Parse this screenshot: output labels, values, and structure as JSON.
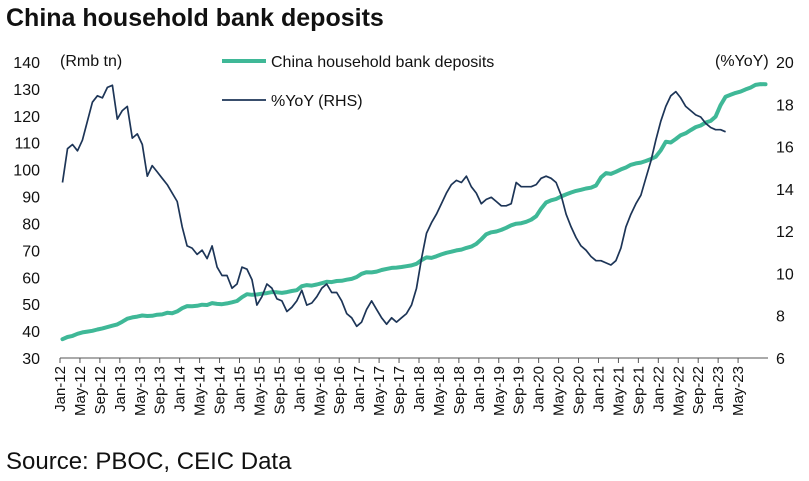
{
  "title": "China household bank deposits",
  "source": "Source: PBOC, CEIC Data",
  "colors": {
    "deposits": "#3fb897",
    "yoy": "#1d3557",
    "text": "#111111"
  },
  "chart_data": {
    "type": "line",
    "title": "China household bank deposits",
    "left_axis_label": "(Rmb tn)",
    "right_axis_label": "(%YoY)",
    "y_left": {
      "min": 30,
      "max": 140,
      "ticks": [
        30,
        40,
        50,
        60,
        70,
        80,
        90,
        100,
        110,
        120,
        130,
        140
      ]
    },
    "y_right": {
      "min": 6,
      "max": 20,
      "ticks": [
        6,
        8,
        10,
        12,
        14,
        16,
        18,
        20
      ]
    },
    "x_ticks": [
      "Jan-12",
      "May-12",
      "Sep-12",
      "Jan-13",
      "May-13",
      "Sep-13",
      "Jan-14",
      "May-14",
      "Sep-14",
      "Jan-15",
      "May-15",
      "Sep-15",
      "Jan-16",
      "May-16",
      "Sep-16",
      "Jan-17",
      "May-17",
      "Sep-17",
      "Jan-18",
      "May-18",
      "Sep-18",
      "Jan-19",
      "May-19",
      "Sep-19",
      "Jan-20",
      "May-20",
      "Sep-20",
      "Jan-21",
      "May-21",
      "Sep-21",
      "Jan-22",
      "May-22",
      "Sep-22",
      "Jan-23",
      "May-23"
    ],
    "grid": false,
    "legend": "top-center",
    "series": [
      {
        "name": "China household bank deposits",
        "axis": "left",
        "values": [
          37,
          37.8,
          38.2,
          39,
          39.5,
          39.8,
          40.1,
          40.6,
          41,
          41.5,
          42,
          42.5,
          43.5,
          44.6,
          45.1,
          45.4,
          45.8,
          45.6,
          45.7,
          46.1,
          46.2,
          46.8,
          46.6,
          47.3,
          48.5,
          49.3,
          49.2,
          49.4,
          49.8,
          49.7,
          50.4,
          50.1,
          50,
          50.3,
          50.7,
          51.2,
          52.6,
          53.7,
          53.5,
          53.6,
          53.9,
          54.1,
          54.5,
          54.4,
          54.2,
          54.5,
          54.9,
          55.2,
          56.7,
          57.1,
          56.9,
          57.3,
          57.8,
          58.3,
          58.2,
          58.6,
          58.7,
          59.1,
          59.4,
          60.1,
          61.3,
          61.9,
          61.8,
          62.1,
          62.7,
          63.1,
          63.5,
          63.6,
          63.8,
          64.1,
          64.4,
          65,
          66.4,
          67.4,
          67.2,
          67.8,
          68.5,
          69.1,
          69.5,
          70,
          70.3,
          70.9,
          71.4,
          72.4,
          74.1,
          76,
          76.7,
          77,
          77.6,
          78.4,
          79.3,
          79.9,
          80.1,
          80.6,
          81.4,
          82.7,
          85.5,
          87.8,
          88.6,
          89.1,
          90,
          90.8,
          91.5,
          92.1,
          92.5,
          93,
          93.3,
          94.1,
          97.1,
          98.7,
          98.4,
          99.2,
          100.1,
          100.8,
          101.8,
          102.3,
          102.6,
          103.2,
          103.9,
          104.8,
          107.2,
          110.4,
          110.1,
          111.4,
          112.8,
          113.5,
          114.7,
          115.8,
          116.4,
          117.5,
          118.1,
          119.7,
          124,
          127.1,
          127.8,
          128.5,
          129,
          129.8,
          130.5,
          131.5,
          131.8,
          131.7
        ],
        "start": "Jan-12",
        "frequency": "monthly"
      },
      {
        "name": "%YoY (RHS)",
        "axis": "right",
        "values": [
          14.3,
          15.9,
          16.1,
          15.8,
          16.3,
          17.2,
          18.1,
          18.4,
          18.3,
          18.8,
          18.9,
          17.3,
          17.7,
          17.9,
          16.4,
          16.6,
          16.1,
          14.6,
          15.1,
          14.8,
          14.5,
          14.2,
          13.8,
          13.4,
          12.2,
          11.3,
          11.2,
          10.9,
          11.1,
          10.7,
          11.3,
          10.3,
          9.9,
          9.9,
          9.3,
          9.5,
          10.3,
          10.2,
          9.7,
          8.5,
          8.9,
          9.5,
          9.3,
          8.8,
          8.7,
          8.2,
          8.4,
          8.7,
          9.2,
          8.5,
          8.6,
          8.9,
          9.3,
          9.5,
          9.1,
          9.1,
          8.7,
          8.1,
          7.9,
          7.5,
          7.7,
          8.3,
          8.7,
          8.3,
          7.9,
          7.6,
          7.9,
          7.7,
          7.9,
          8.1,
          8.5,
          9.3,
          10.7,
          11.9,
          12.4,
          12.8,
          13.3,
          13.8,
          14.2,
          14.4,
          14.3,
          14.6,
          14.1,
          13.8,
          13.3,
          13.5,
          13.6,
          13.4,
          13.2,
          13.2,
          13.3,
          14.3,
          14.1,
          14.1,
          14.1,
          14.2,
          14.5,
          14.6,
          14.5,
          14.3,
          13.7,
          12.8,
          12.2,
          11.7,
          11.3,
          11.1,
          10.8,
          10.6,
          10.6,
          10.5,
          10.4,
          10.6,
          11.2,
          12.2,
          12.8,
          13.3,
          13.7,
          14.5,
          15.3,
          16.3,
          17.2,
          17.9,
          18.4,
          18.6,
          18.3,
          17.9,
          17.7,
          17.5,
          17.4,
          17.1,
          16.9,
          16.8,
          16.8,
          16.7
        ],
        "start": "Jan-12",
        "frequency": "monthly"
      }
    ]
  }
}
